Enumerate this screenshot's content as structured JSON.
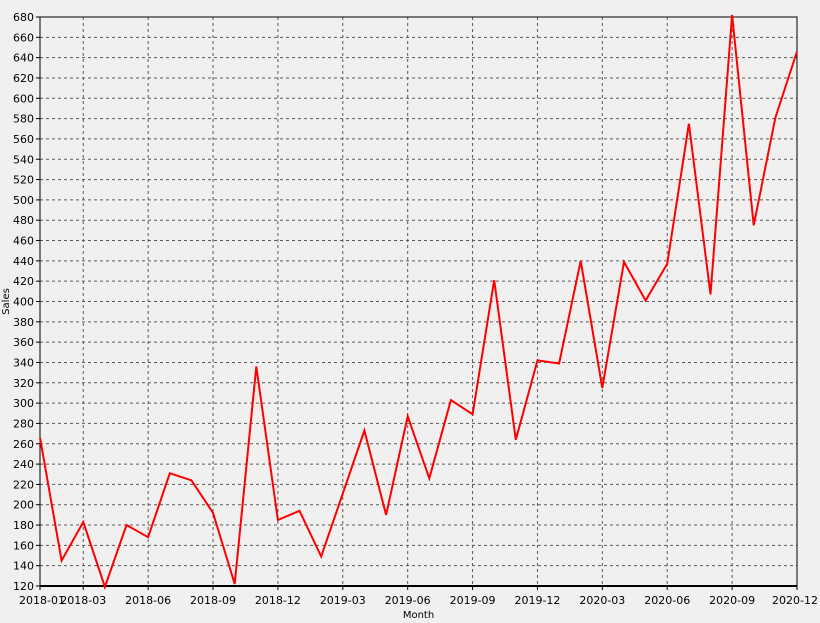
{
  "chart_data": {
    "type": "line",
    "title": "",
    "xlabel": "Month",
    "ylabel": "Sales",
    "ylim": [
      120,
      680
    ],
    "yticks": [
      120,
      140,
      160,
      180,
      200,
      220,
      240,
      260,
      280,
      300,
      320,
      340,
      360,
      380,
      400,
      420,
      440,
      460,
      480,
      500,
      520,
      540,
      560,
      580,
      600,
      620,
      640,
      660,
      680
    ],
    "x": [
      "2018-01",
      "2018-02",
      "2018-03",
      "2018-04",
      "2018-05",
      "2018-06",
      "2018-07",
      "2018-08",
      "2018-09",
      "2018-10",
      "2018-11",
      "2018-12",
      "2019-01",
      "2019-02",
      "2019-03",
      "2019-04",
      "2019-05",
      "2019-06",
      "2019-07",
      "2019-08",
      "2019-09",
      "2019-10",
      "2019-11",
      "2019-12",
      "2020-01",
      "2020-02",
      "2020-03",
      "2020-04",
      "2020-05",
      "2020-06",
      "2020-07",
      "2020-08",
      "2020-09",
      "2020-10",
      "2020-11",
      "2020-12"
    ],
    "xtick_labels": [
      "2018-01",
      "2018-03",
      "2018-06",
      "2018-09",
      "2018-12",
      "2019-03",
      "2019-06",
      "2019-09",
      "2019-12",
      "2020-03",
      "2020-06",
      "2020-09",
      "2020-12"
    ],
    "series": [
      {
        "color": "#ff0000",
        "values": [
          266,
          145,
          183,
          119,
          180,
          168,
          231,
          224,
          192,
          122,
          336,
          185,
          194,
          149,
          211,
          273,
          190,
          287,
          226,
          303,
          289,
          421,
          264,
          342,
          339,
          440,
          315,
          439,
          401,
          437,
          575,
          407,
          682,
          475,
          581,
          646
        ]
      }
    ],
    "grid": true,
    "legend": "none"
  }
}
